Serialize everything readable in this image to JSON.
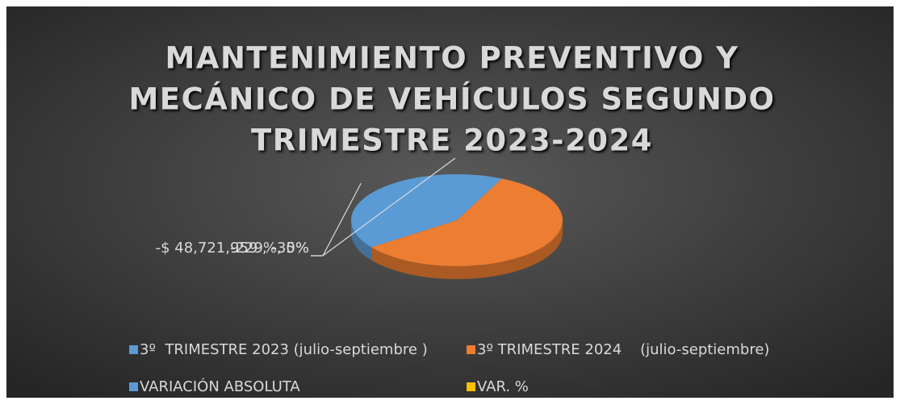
{
  "chart_data": {
    "type": "pie",
    "title": [
      "MANTENIMIENTO PREVENTIVO Y",
      "MECÁNICO DE VEHÍCULOS SEGUNDO",
      "TRIMESTRE 2023-2024"
    ],
    "categories": [
      "3º  TRIMESTRE 2023 (julio-septiembre )",
      "3º TRIMESTRE 2024    (julio-septiembre)",
      "VARIACIÓN ABSOLUTA",
      "VAR. %"
    ],
    "values": [
      7,
      58,
      35,
      0
    ],
    "value_labels": [
      null,
      null,
      "-$ 48,721,959 , -35%",
      "-229%, 0%"
    ],
    "colors": [
      "#5b9bd5",
      "#ed7d31",
      "#5b9bd5",
      "#ffc000"
    ],
    "legend": "bottom"
  }
}
